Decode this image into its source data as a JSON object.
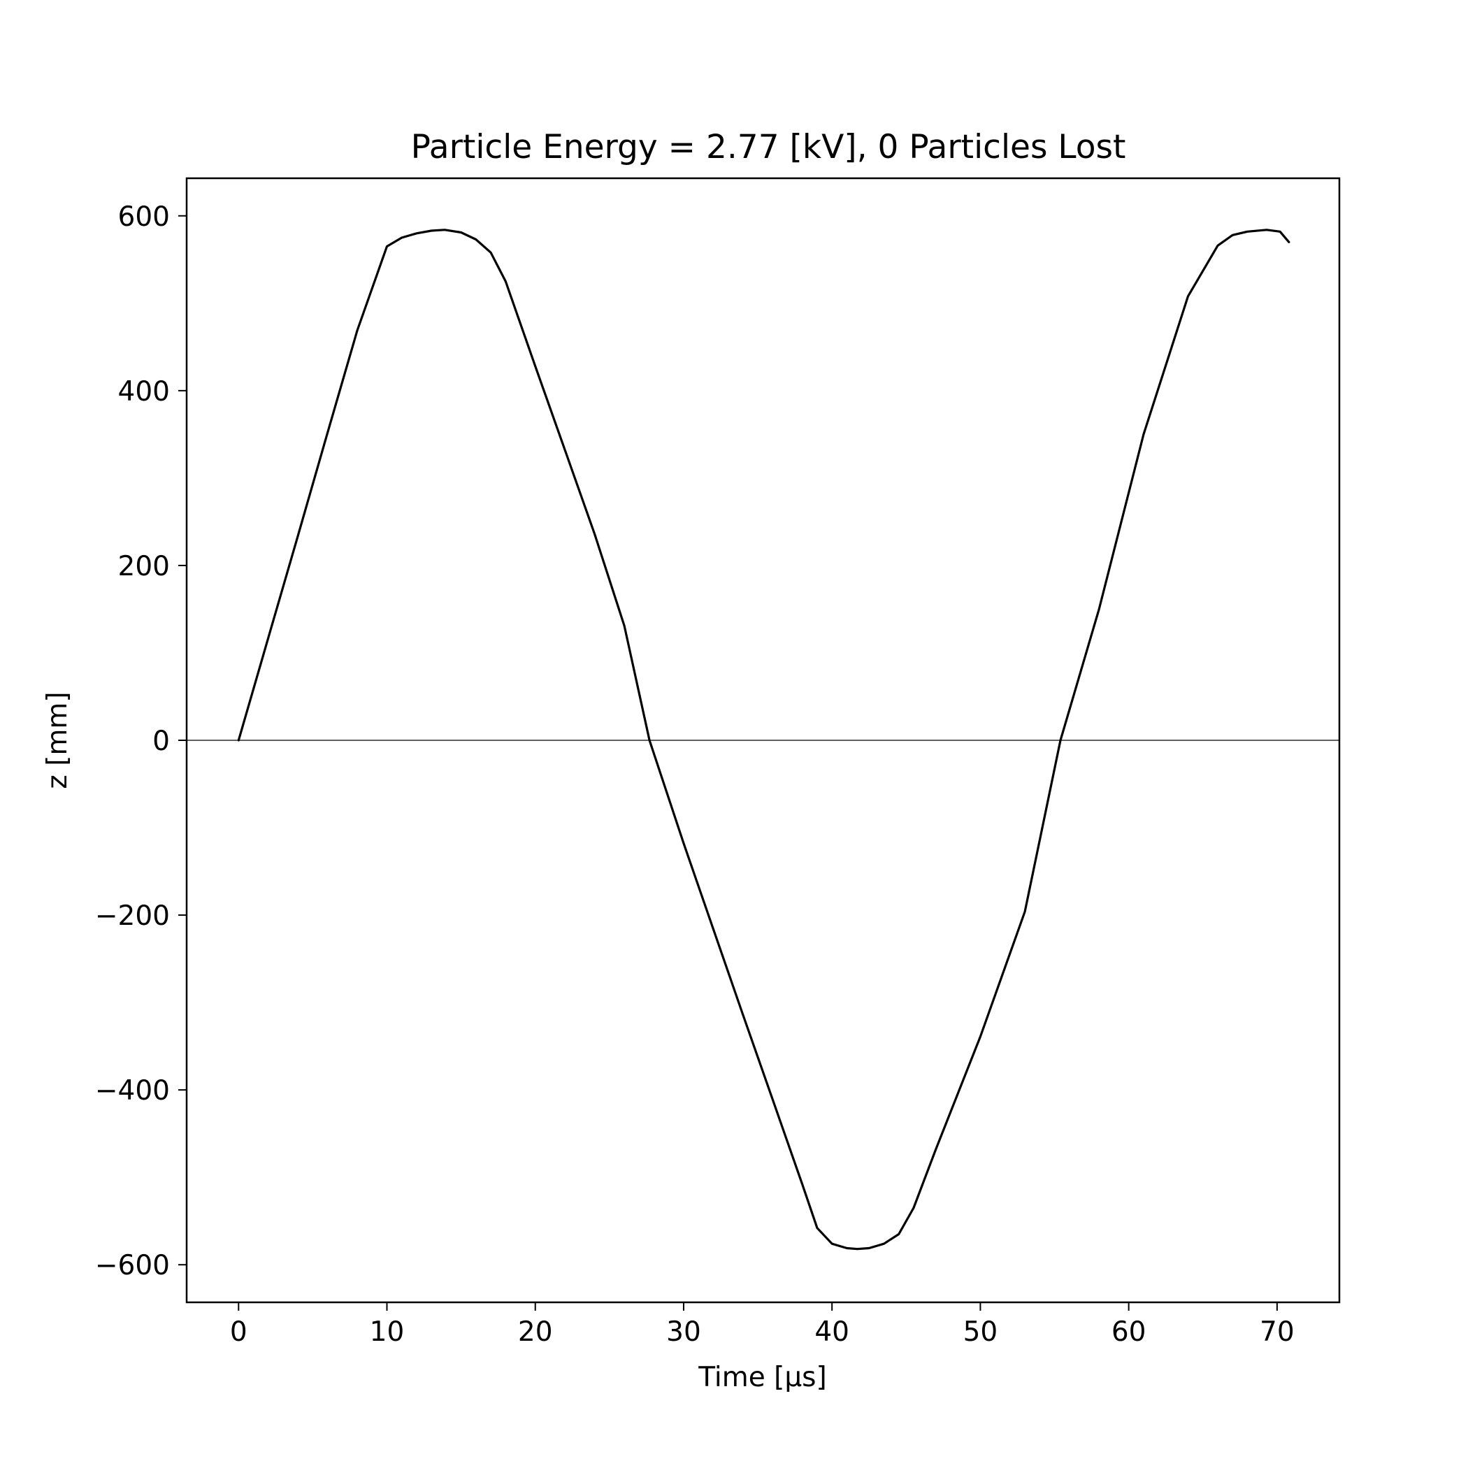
{
  "chart_data": {
    "type": "line",
    "title": "Particle Energy = 2.77 [kV], 0 Particles Lost",
    "xlabel": "Time [μs]",
    "ylabel": "z [mm]",
    "xlim": [
      -3.5,
      74.2
    ],
    "ylim": [
      -643,
      643
    ],
    "xticks": [
      0,
      10,
      20,
      30,
      40,
      50,
      60,
      70
    ],
    "xtick_labels": [
      "0",
      "10",
      "20",
      "30",
      "40",
      "50",
      "60",
      "70"
    ],
    "yticks": [
      600,
      400,
      200,
      0,
      -200,
      -400,
      -600
    ],
    "ytick_labels": [
      "600",
      "400",
      "200",
      "0",
      "−200",
      "−400",
      "−600"
    ],
    "grid": false,
    "reference_line": {
      "y": 0,
      "color": "#000000"
    },
    "series": [
      {
        "color": "#000000",
        "x": [
          0,
          2,
          4,
          6,
          8,
          10,
          11,
          12,
          13,
          13.9,
          15,
          16,
          17,
          18,
          20,
          22,
          24,
          26,
          27.7,
          30,
          32,
          34,
          36,
          38,
          39,
          40,
          41,
          41.7,
          42.5,
          43.5,
          44.5,
          45.5,
          47,
          50,
          53,
          55.4,
          58,
          61,
          64,
          66,
          67,
          68,
          69.3,
          70.2,
          70.8
        ],
        "y": [
          0,
          117,
          234,
          352,
          469,
          565,
          575,
          580,
          583,
          584,
          581,
          573,
          558,
          525,
          428,
          332,
          236,
          131,
          0,
          -118,
          -216,
          -314,
          -411,
          -508,
          -558,
          -576,
          -581,
          -582,
          -581,
          -576,
          -565,
          -535,
          -468,
          -339,
          -196,
          0,
          150,
          350,
          508,
          566,
          578,
          582,
          584,
          582,
          570
        ]
      }
    ]
  }
}
